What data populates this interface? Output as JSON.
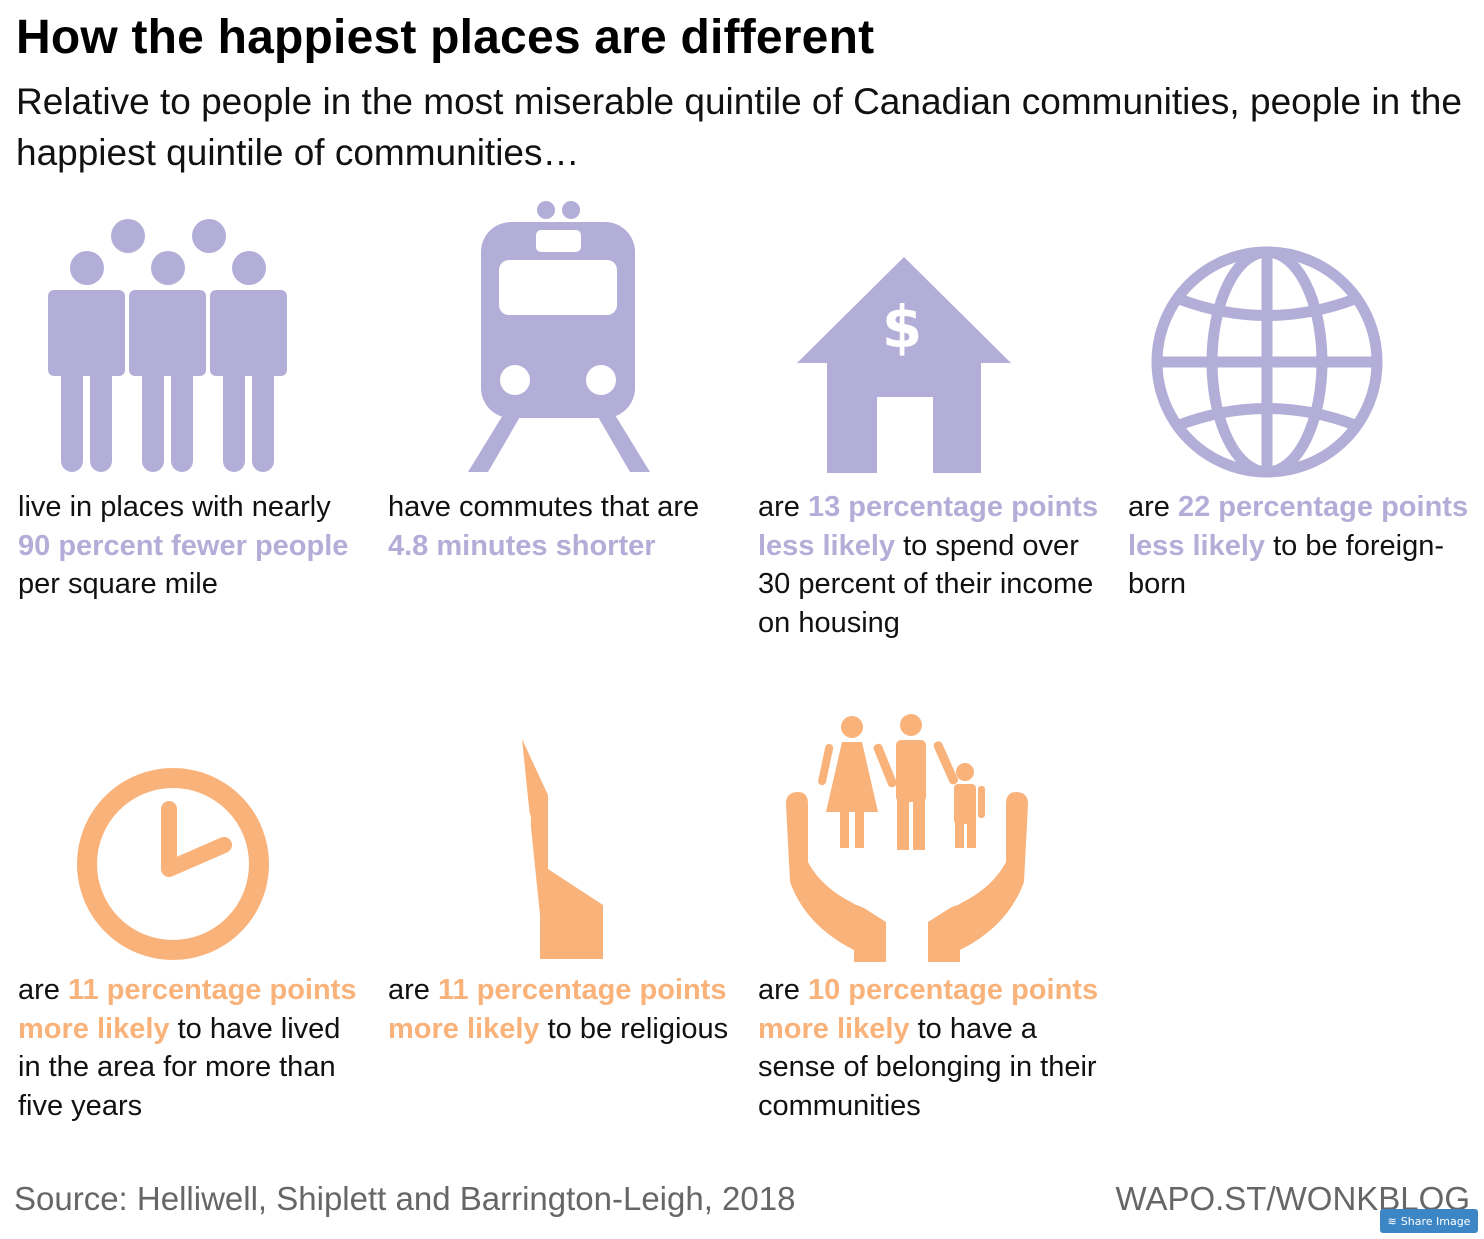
{
  "header": {
    "title": "How the happiest places are different",
    "subtitle": "Relative to people in the most miserable quintile of Canadian communities, people in the happiest quintile of communities…"
  },
  "colors": {
    "purple": "#b3aed8",
    "orange": "#f9b27a"
  },
  "items": [
    {
      "icon": "people-icon",
      "color": "purple",
      "parts": [
        "live in places with nearly ",
        "90 percent fewer people",
        " per square mile"
      ]
    },
    {
      "icon": "train-icon",
      "color": "purple",
      "parts": [
        "have commutes that are ",
        "4.8 minutes shorter",
        ""
      ]
    },
    {
      "icon": "house-dollar-icon",
      "color": "purple",
      "parts": [
        "are ",
        "13 percentage points less likely",
        " to spend over 30 percent of their income on housing"
      ]
    },
    {
      "icon": "globe-icon",
      "color": "purple",
      "parts": [
        "are ",
        "22 percentage points less likely",
        " to be foreign-born"
      ]
    },
    {
      "icon": "clock-icon",
      "color": "orange",
      "parts": [
        "are ",
        "11 percentage points more likely",
        " to have lived in the area for more than five years"
      ]
    },
    {
      "icon": "church-icon",
      "color": "orange",
      "parts": [
        "are ",
        "11 percentage points more likely",
        " to be religious"
      ]
    },
    {
      "icon": "family-hands-icon",
      "color": "orange",
      "parts": [
        "are ",
        "10 percentage points more likely",
        " to have a sense of belonging in their communities"
      ]
    }
  ],
  "footer": {
    "source": "Source: Helliwell, Shiplett and Barrington-Leigh, 2018",
    "credit": "WAPO.ST/WONKBLOG",
    "share_label": "Share Image"
  }
}
